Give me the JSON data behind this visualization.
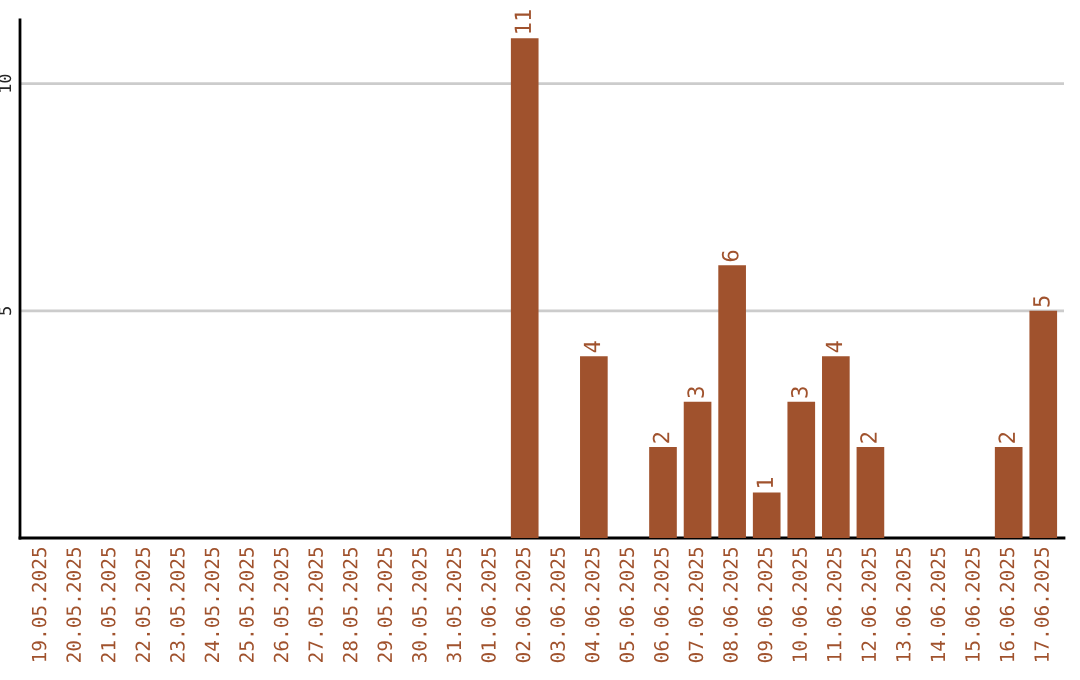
{
  "chart_data": {
    "type": "bar",
    "categories": [
      "19.05.2025",
      "20.05.2025",
      "21.05.2025",
      "22.05.2025",
      "23.05.2025",
      "24.05.2025",
      "25.05.2025",
      "26.05.2025",
      "27.05.2025",
      "28.05.2025",
      "29.05.2025",
      "30.05.2025",
      "31.05.2025",
      "01.06.2025",
      "02.06.2025",
      "03.06.2025",
      "04.06.2025",
      "05.06.2025",
      "06.06.2025",
      "07.06.2025",
      "08.06.2025",
      "09.06.2025",
      "10.06.2025",
      "11.06.2025",
      "12.06.2025",
      "13.06.2025",
      "14.06.2025",
      "15.06.2025",
      "16.06.2025",
      "17.06.2025"
    ],
    "values": [
      null,
      null,
      null,
      null,
      null,
      null,
      null,
      null,
      null,
      null,
      null,
      null,
      null,
      null,
      11,
      null,
      4,
      null,
      2,
      3,
      6,
      1,
      3,
      4,
      2,
      null,
      null,
      null,
      2,
      5
    ],
    "value_labels": [
      null,
      null,
      null,
      null,
      null,
      null,
      null,
      null,
      null,
      null,
      null,
      null,
      null,
      null,
      "11",
      null,
      "4",
      null,
      "2",
      "3",
      "6",
      "1",
      "3",
      "4",
      "2",
      null,
      null,
      null,
      "2",
      "5"
    ],
    "color": "#a0522d",
    "ylim": [
      0,
      11.4
    ],
    "yticks": [
      5,
      10
    ],
    "grid": "y"
  }
}
